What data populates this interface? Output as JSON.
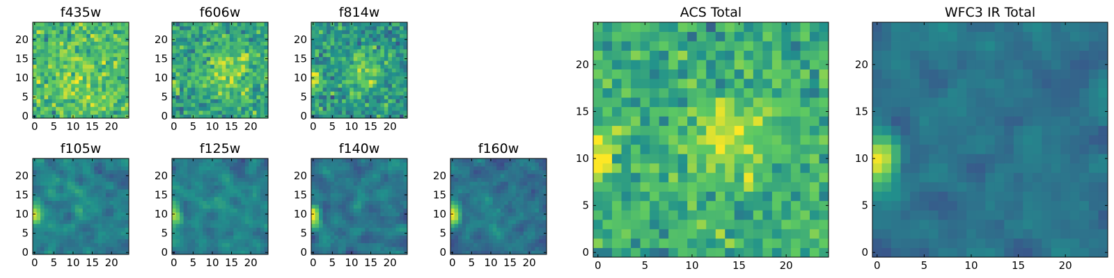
{
  "figure": {
    "type": "heatmap",
    "colormap": "viridis",
    "colormap_stops": [
      "#440154",
      "#3b528b",
      "#21918c",
      "#5ec962",
      "#fde725"
    ]
  },
  "chart_data": [
    {
      "type": "heatmap",
      "title": "f435w",
      "grid_size": 25,
      "xlim": [
        0,
        24
      ],
      "ylim": [
        0,
        24
      ],
      "xticks": [
        0,
        5,
        10,
        15,
        20
      ],
      "yticks": [
        0,
        5,
        10,
        15,
        20
      ],
      "level": 0.66,
      "contrast": 0.22,
      "smooth": 0,
      "blob": {
        "x": 12,
        "y": 10,
        "r": 6,
        "amp": 0.12
      },
      "edge": 0.15,
      "seed": 11
    },
    {
      "type": "heatmap",
      "title": "f606w",
      "grid_size": 25,
      "xlim": [
        0,
        24
      ],
      "ylim": [
        0,
        24
      ],
      "xticks": [
        0,
        5,
        10,
        15,
        20
      ],
      "yticks": [
        0,
        5,
        10,
        15,
        20
      ],
      "level": 0.58,
      "contrast": 0.22,
      "smooth": 0,
      "blob": {
        "x": 14,
        "y": 12,
        "r": 4,
        "amp": 0.3
      },
      "edge": 0.1,
      "seed": 23
    },
    {
      "type": "heatmap",
      "title": "f814w",
      "grid_size": 25,
      "xlim": [
        0,
        24
      ],
      "ylim": [
        0,
        24
      ],
      "xticks": [
        0,
        5,
        10,
        15,
        20
      ],
      "yticks": [
        0,
        5,
        10,
        15,
        20
      ],
      "level": 0.52,
      "contrast": 0.22,
      "smooth": 0,
      "blob": {
        "x": 14,
        "y": 12,
        "r": 4,
        "amp": 0.25
      },
      "edge": 0.4,
      "seed": 37
    },
    {
      "type": "heatmap",
      "title": "f105w",
      "grid_size": 25,
      "xlim": [
        0,
        24
      ],
      "ylim": [
        0,
        24
      ],
      "xticks": [
        0,
        5,
        10,
        15,
        20
      ],
      "yticks": [
        0,
        5,
        10,
        15,
        20
      ],
      "level": 0.42,
      "contrast": 0.17,
      "smooth": 1,
      "blob": {
        "x": 12,
        "y": 12,
        "r": 4,
        "amp": 0.05
      },
      "edge": 0.55,
      "seed": 41
    },
    {
      "type": "heatmap",
      "title": "f125w",
      "grid_size": 25,
      "xlim": [
        0,
        24
      ],
      "ylim": [
        0,
        24
      ],
      "xticks": [
        0,
        5,
        10,
        15,
        20
      ],
      "yticks": [
        0,
        5,
        10,
        15,
        20
      ],
      "level": 0.44,
      "contrast": 0.16,
      "smooth": 1,
      "blob": {
        "x": 12,
        "y": 12,
        "r": 4,
        "amp": 0.02
      },
      "edge": 0.5,
      "seed": 53
    },
    {
      "type": "heatmap",
      "title": "f140w",
      "grid_size": 25,
      "xlim": [
        0,
        24
      ],
      "ylim": [
        0,
        24
      ],
      "xticks": [
        0,
        5,
        10,
        15,
        20
      ],
      "yticks": [
        0,
        5,
        10,
        15,
        20
      ],
      "level": 0.4,
      "contrast": 0.17,
      "smooth": 1,
      "blob": {
        "x": 12,
        "y": 12,
        "r": 4,
        "amp": 0.02
      },
      "edge": 0.6,
      "seed": 67
    },
    {
      "type": "heatmap",
      "title": "f160w",
      "grid_size": 25,
      "xlim": [
        0,
        24
      ],
      "ylim": [
        0,
        24
      ],
      "xticks": [
        0,
        5,
        10,
        15,
        20
      ],
      "yticks": [
        0,
        5,
        10,
        15,
        20
      ],
      "level": 0.38,
      "contrast": 0.17,
      "smooth": 1,
      "blob": {
        "x": 12,
        "y": 12,
        "r": 4,
        "amp": 0.02
      },
      "edge": 0.6,
      "seed": 79
    },
    {
      "type": "heatmap",
      "title": "ACS Total",
      "grid_size": 25,
      "xlim": [
        0,
        24
      ],
      "ylim": [
        0,
        24
      ],
      "xticks": [
        0,
        5,
        10,
        15,
        20
      ],
      "yticks": [
        0,
        5,
        10,
        15,
        20
      ],
      "level": 0.62,
      "contrast": 0.2,
      "smooth": 0,
      "blob": {
        "x": 14,
        "y": 12,
        "r": 3,
        "amp": 0.28
      },
      "edge": 0.38,
      "seed": 97
    },
    {
      "type": "heatmap",
      "title": "WFC3 IR Total",
      "grid_size": 25,
      "xlim": [
        0,
        24
      ],
      "ylim": [
        0,
        24
      ],
      "xticks": [
        0,
        5,
        10,
        15,
        20
      ],
      "yticks": [
        0,
        5,
        10,
        15,
        20
      ],
      "level": 0.38,
      "contrast": 0.12,
      "smooth": 1,
      "blob": {
        "x": 12,
        "y": 12,
        "r": 4,
        "amp": 0.0
      },
      "edge": 0.62,
      "seed": 113
    }
  ]
}
